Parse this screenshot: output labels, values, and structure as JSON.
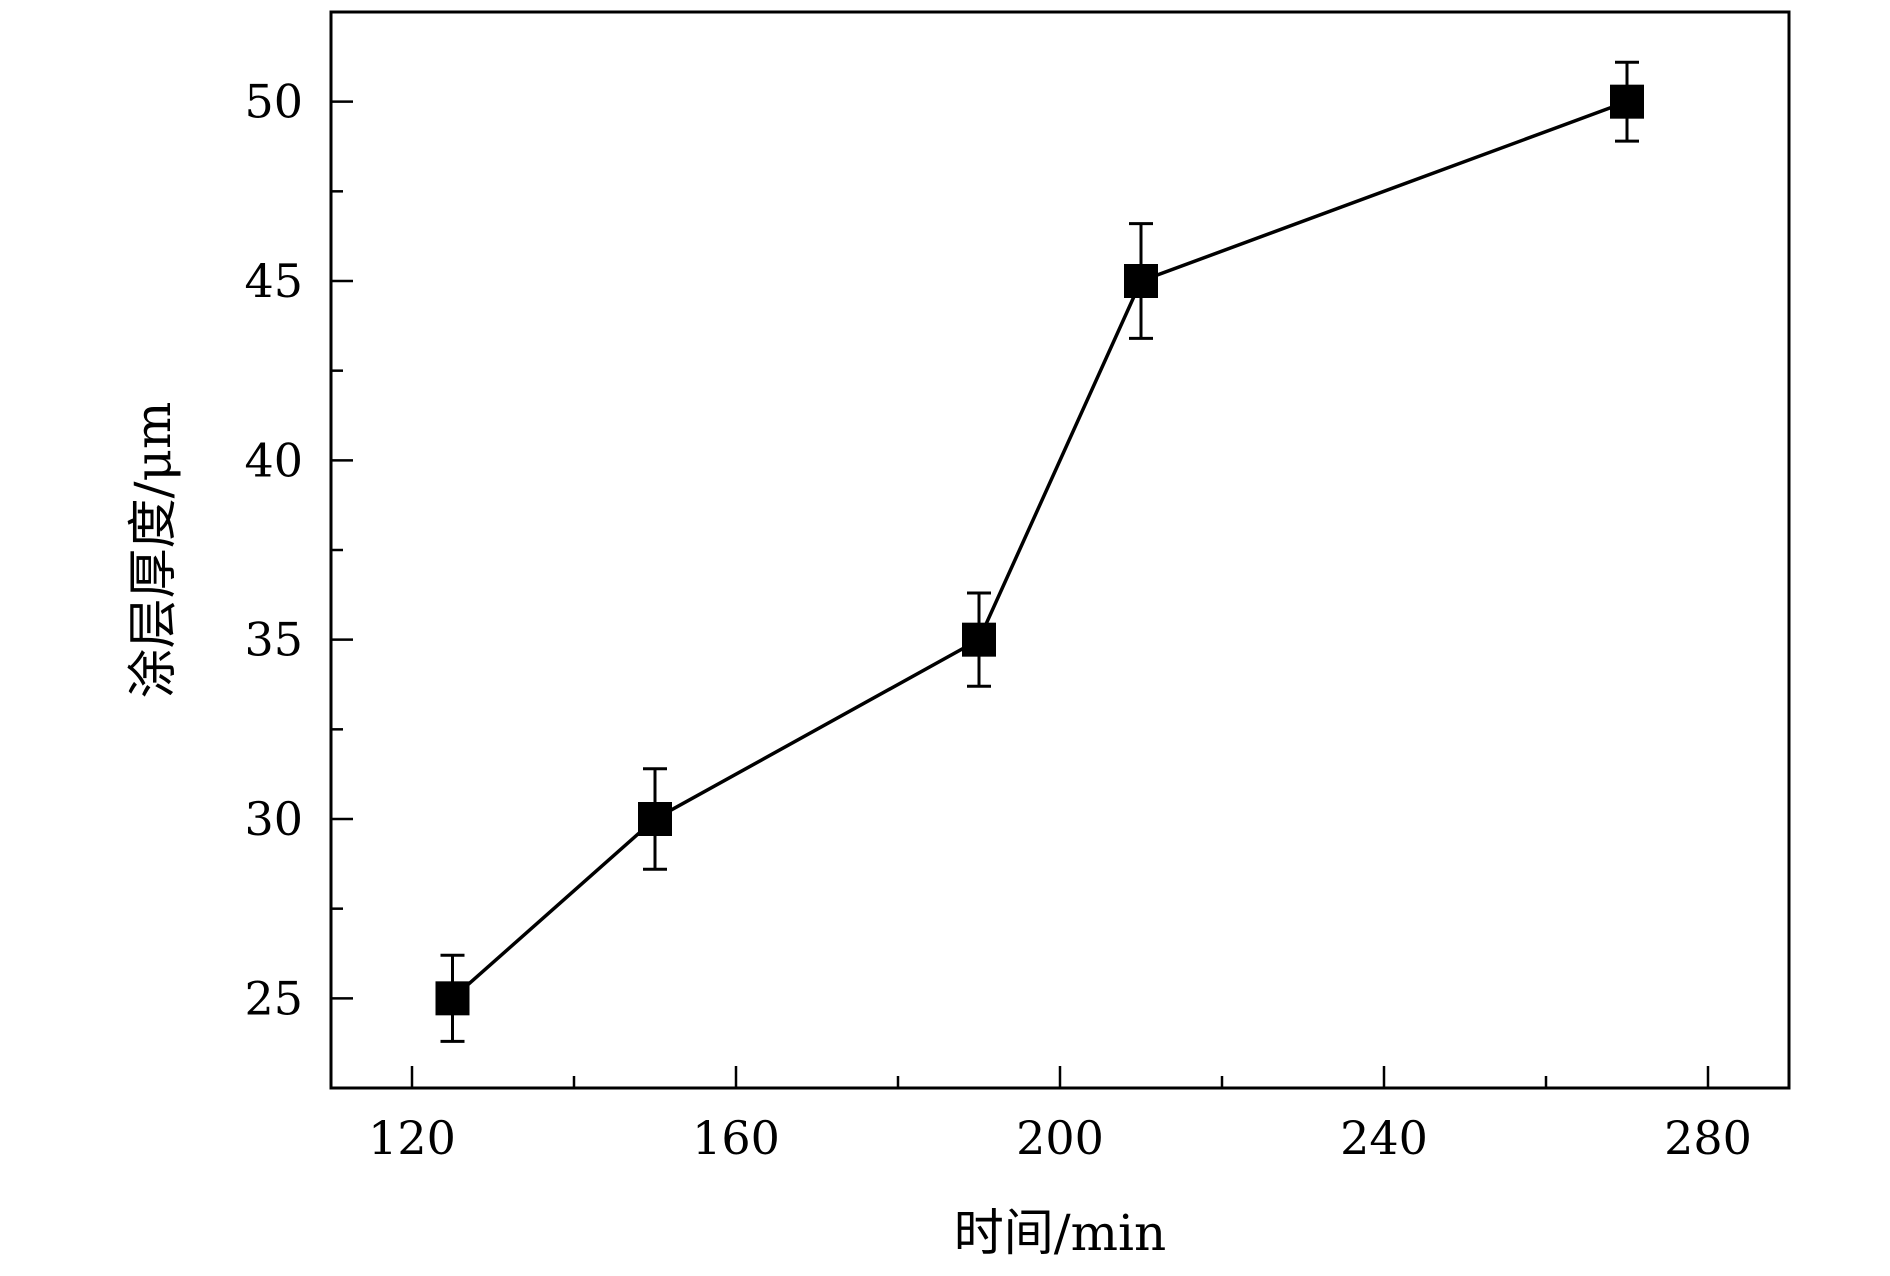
{
  "chart_data": {
    "type": "line",
    "xlabel": "时间/min",
    "ylabel": "涂层厚度/μm",
    "xlim": [
      110,
      290
    ],
    "ylim": [
      22.5,
      52.5
    ],
    "x_ticks": [
      120,
      160,
      200,
      240,
      280
    ],
    "y_ticks": [
      25,
      30,
      35,
      40,
      45,
      50
    ],
    "grid": false,
    "series": [
      {
        "x": [
          125,
          150,
          190,
          210,
          270
        ],
        "values": [
          25,
          30,
          35,
          45,
          50
        ],
        "error": [
          1.2,
          1.4,
          1.3,
          1.6,
          1.1
        ],
        "marker": "square",
        "color": "#000000"
      }
    ]
  }
}
